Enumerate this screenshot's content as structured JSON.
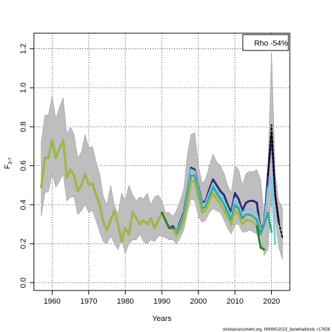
{
  "chart_data": {
    "type": "line",
    "xlabel": "Years",
    "ylabel_main": "F",
    "ylabel_sub": "3-7",
    "xlim": [
      1955,
      2025
    ],
    "ylim": [
      -0.04,
      1.28
    ],
    "x_ticks": [
      1960,
      1970,
      1980,
      1990,
      2000,
      2010,
      2020
    ],
    "y_ticks": [
      0.0,
      0.2,
      0.4,
      0.6,
      0.8,
      1.0,
      1.2
    ],
    "grid": true,
    "legend_text": "Rho -54%",
    "legend_position": "top-right",
    "credit": "stockassessment.org, NWWG2023_faroehaddock, r17628",
    "band": {
      "color": "#bebebe",
      "x": [
        1957,
        1958,
        1959,
        1960,
        1961,
        1962,
        1963,
        1964,
        1965,
        1966,
        1967,
        1968,
        1969,
        1970,
        1971,
        1972,
        1973,
        1974,
        1975,
        1976,
        1977,
        1978,
        1979,
        1980,
        1981,
        1982,
        1983,
        1984,
        1985,
        1986,
        1987,
        1988,
        1989,
        1990,
        1991,
        1992,
        1993,
        1994,
        1995,
        1996,
        1997,
        1998,
        1999,
        2000,
        2001,
        2002,
        2003,
        2004,
        2005,
        2006,
        2007,
        2008,
        2009,
        2010,
        2011,
        2012,
        2013,
        2014,
        2015,
        2016,
        2017,
        2018,
        2019,
        2020,
        2021,
        2022,
        2023
      ],
      "upper": [
        0.72,
        0.86,
        0.86,
        0.96,
        0.84,
        0.9,
        0.95,
        0.76,
        0.8,
        0.76,
        0.64,
        0.67,
        0.76,
        0.69,
        0.7,
        0.62,
        0.56,
        0.44,
        0.4,
        0.5,
        0.4,
        0.35,
        0.46,
        0.42,
        0.5,
        0.45,
        0.42,
        0.44,
        0.43,
        0.46,
        0.4,
        0.44,
        0.45,
        0.42,
        0.36,
        0.36,
        0.34,
        0.37,
        0.42,
        0.48,
        0.66,
        0.76,
        0.77,
        0.6,
        0.51,
        0.53,
        0.6,
        0.66,
        0.62,
        0.6,
        0.56,
        0.5,
        0.46,
        0.6,
        0.58,
        0.5,
        0.56,
        0.57,
        0.57,
        0.58,
        0.53,
        0.34,
        0.58,
        1.18,
        0.56,
        0.42,
        0.38
      ],
      "lower": [
        0.34,
        0.46,
        0.47,
        0.56,
        0.49,
        0.52,
        0.56,
        0.42,
        0.44,
        0.44,
        0.35,
        0.37,
        0.4,
        0.36,
        0.37,
        0.32,
        0.26,
        0.21,
        0.2,
        0.24,
        0.2,
        0.17,
        0.22,
        0.15,
        0.2,
        0.22,
        0.22,
        0.25,
        0.21,
        0.2,
        0.22,
        0.21,
        0.24,
        0.24,
        0.23,
        0.22,
        0.22,
        0.2,
        0.23,
        0.27,
        0.36,
        0.43,
        0.42,
        0.34,
        0.31,
        0.32,
        0.36,
        0.38,
        0.37,
        0.36,
        0.32,
        0.28,
        0.25,
        0.3,
        0.3,
        0.26,
        0.26,
        0.27,
        0.26,
        0.25,
        0.24,
        0.14,
        0.17,
        0.47,
        0.33,
        0.18,
        0.12
      ]
    },
    "series": [
      {
        "color": "#2d2a7c",
        "x": [
          1957,
          1958,
          1959,
          1960,
          1961,
          1962,
          1963,
          1964,
          1965,
          1966,
          1967,
          1968,
          1969,
          1970,
          1971,
          1972,
          1973,
          1974,
          1975,
          1976,
          1977,
          1978,
          1979,
          1980,
          1981,
          1982,
          1983,
          1984,
          1985,
          1986,
          1987,
          1988,
          1989,
          1990,
          1991,
          1992,
          1993,
          1994,
          1995,
          1996,
          1997,
          1998,
          1999,
          2000,
          2001,
          2002,
          2003,
          2004,
          2005,
          2006,
          2007,
          2008,
          2009,
          2010,
          2011,
          2012,
          2013,
          2014,
          2015,
          2016,
          2017,
          2018,
          2019,
          2020,
          2021,
          2022
        ],
        "values": [
          0.49,
          0.64,
          0.64,
          0.73,
          0.64,
          0.69,
          0.73,
          0.54,
          0.58,
          0.55,
          0.47,
          0.5,
          0.56,
          0.5,
          0.51,
          0.45,
          0.4,
          0.31,
          0.27,
          0.32,
          0.37,
          0.3,
          0.21,
          0.28,
          0.25,
          0.36,
          0.33,
          0.3,
          0.32,
          0.3,
          0.33,
          0.28,
          0.32,
          0.36,
          0.32,
          0.28,
          0.29,
          0.26,
          0.31,
          0.36,
          0.47,
          0.59,
          0.58,
          0.49,
          0.41,
          0.42,
          0.48,
          0.53,
          0.5,
          0.47,
          0.45,
          0.4,
          0.36,
          0.46,
          0.43,
          0.37,
          0.41,
          0.42,
          0.42,
          0.41,
          0.27,
          0.3,
          0.55,
          0.76,
          0.45,
          0.31
        ]
      },
      {
        "color": "#7ec8e3",
        "x": [
          1957,
          1958,
          1959,
          1960,
          1961,
          1962,
          1963,
          1964,
          1965,
          1966,
          1967,
          1968,
          1969,
          1970,
          1971,
          1972,
          1973,
          1974,
          1975,
          1976,
          1977,
          1978,
          1979,
          1980,
          1981,
          1982,
          1983,
          1984,
          1985,
          1986,
          1987,
          1988,
          1989,
          1990,
          1991,
          1992,
          1993,
          1994,
          1995,
          1996,
          1997,
          1998,
          1999,
          2000,
          2001,
          2002,
          2003,
          2004,
          2005,
          2006,
          2007,
          2008,
          2009,
          2010,
          2011,
          2012,
          2013,
          2014,
          2015,
          2016,
          2017,
          2018,
          2019,
          2020,
          2021
        ],
        "values": [
          0.49,
          0.64,
          0.64,
          0.73,
          0.64,
          0.69,
          0.73,
          0.54,
          0.58,
          0.55,
          0.47,
          0.5,
          0.56,
          0.5,
          0.51,
          0.45,
          0.4,
          0.31,
          0.27,
          0.32,
          0.37,
          0.3,
          0.21,
          0.28,
          0.25,
          0.36,
          0.33,
          0.3,
          0.32,
          0.3,
          0.33,
          0.28,
          0.32,
          0.36,
          0.32,
          0.28,
          0.28,
          0.26,
          0.3,
          0.35,
          0.46,
          0.58,
          0.57,
          0.48,
          0.4,
          0.41,
          0.46,
          0.51,
          0.48,
          0.45,
          0.42,
          0.38,
          0.34,
          0.43,
          0.4,
          0.35,
          0.38,
          0.38,
          0.37,
          0.35,
          0.27,
          0.29,
          0.48,
          0.54,
          0.2
        ]
      },
      {
        "color": "#3aa893",
        "x": [
          1957,
          1958,
          1959,
          1960,
          1961,
          1962,
          1963,
          1964,
          1965,
          1966,
          1967,
          1968,
          1969,
          1970,
          1971,
          1972,
          1973,
          1974,
          1975,
          1976,
          1977,
          1978,
          1979,
          1980,
          1981,
          1982,
          1983,
          1984,
          1985,
          1986,
          1987,
          1988,
          1989,
          1990,
          1991,
          1992,
          1993,
          1994,
          1995,
          1996,
          1997,
          1998,
          1999,
          2000,
          2001,
          2002,
          2003,
          2004,
          2005,
          2006,
          2007,
          2008,
          2009,
          2010,
          2011,
          2012,
          2013,
          2014,
          2015,
          2016,
          2017,
          2018,
          2019,
          2020
        ],
        "values": [
          0.49,
          0.64,
          0.64,
          0.73,
          0.64,
          0.69,
          0.73,
          0.54,
          0.58,
          0.55,
          0.47,
          0.5,
          0.56,
          0.5,
          0.51,
          0.45,
          0.4,
          0.31,
          0.27,
          0.32,
          0.37,
          0.3,
          0.21,
          0.28,
          0.25,
          0.36,
          0.33,
          0.3,
          0.32,
          0.3,
          0.33,
          0.28,
          0.32,
          0.36,
          0.32,
          0.28,
          0.28,
          0.25,
          0.29,
          0.34,
          0.44,
          0.55,
          0.55,
          0.46,
          0.38,
          0.39,
          0.44,
          0.49,
          0.46,
          0.43,
          0.4,
          0.36,
          0.32,
          0.4,
          0.38,
          0.33,
          0.35,
          0.35,
          0.34,
          0.32,
          0.25,
          0.3,
          0.36,
          0.26
        ]
      },
      {
        "color": "#a5b83d",
        "x": [
          1957,
          1958,
          1959,
          1960,
          1961,
          1962,
          1963,
          1964,
          1965,
          1966,
          1967,
          1968,
          1969,
          1970,
          1971,
          1972,
          1973,
          1974,
          1975,
          1976,
          1977,
          1978,
          1979,
          1980,
          1981,
          1982,
          1983,
          1984,
          1985,
          1986,
          1987,
          1988,
          1989,
          1990,
          1991,
          1992,
          1993,
          1994,
          1995,
          1996,
          1997,
          1998,
          1999,
          2000,
          2001,
          2002,
          2003,
          2004,
          2005,
          2006,
          2007,
          2008,
          2009,
          2010,
          2011,
          2012,
          2013,
          2014,
          2015,
          2016,
          2017,
          2018
        ],
        "values": [
          0.49,
          0.64,
          0.64,
          0.73,
          0.64,
          0.69,
          0.73,
          0.54,
          0.58,
          0.55,
          0.47,
          0.5,
          0.56,
          0.5,
          0.51,
          0.45,
          0.4,
          0.31,
          0.27,
          0.32,
          0.37,
          0.3,
          0.21,
          0.28,
          0.25,
          0.36,
          0.33,
          0.3,
          0.32,
          0.3,
          0.33,
          0.28,
          0.32,
          0.36,
          0.32,
          0.28,
          0.28,
          0.24,
          0.27,
          0.32,
          0.41,
          0.52,
          0.52,
          0.43,
          0.36,
          0.37,
          0.42,
          0.46,
          0.43,
          0.4,
          0.37,
          0.33,
          0.3,
          0.37,
          0.35,
          0.3,
          0.32,
          0.32,
          0.31,
          0.29,
          0.19,
          0.17
        ]
      },
      {
        "color": "#2e7d32",
        "x": [
          1990,
          1991,
          1992,
          1993,
          2016,
          2017,
          2018
        ],
        "values": [
          0.36,
          0.32,
          0.28,
          0.28,
          0.29,
          0.18,
          0.17
        ],
        "segments": [
          [
            0,
            3
          ],
          [
            4,
            6
          ]
        ]
      },
      {
        "color": "#000000",
        "dashed": true,
        "x": [
          2019,
          2020,
          2021,
          2022,
          2023
        ],
        "values": [
          0.55,
          0.81,
          0.45,
          0.31,
          0.23
        ]
      }
    ]
  }
}
